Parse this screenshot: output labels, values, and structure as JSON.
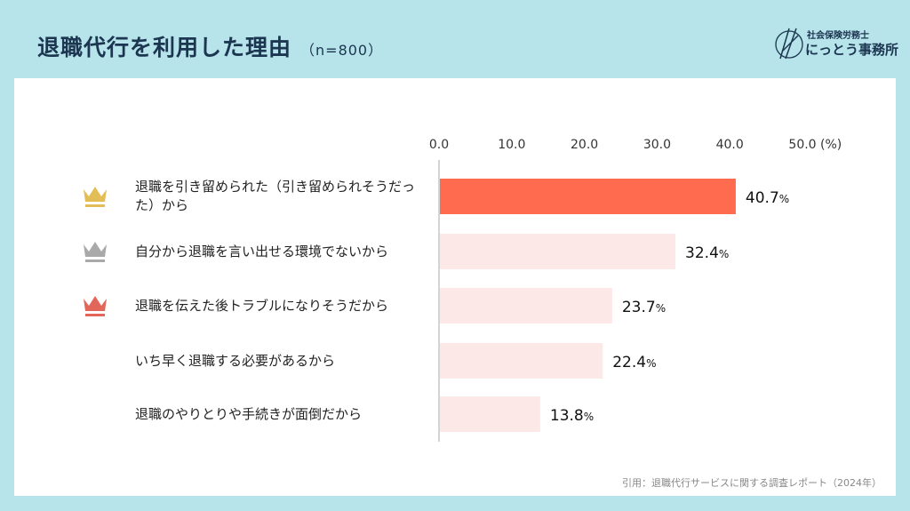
{
  "title": "退職代行を利用した理由",
  "subtitle": "（n=800）",
  "logo": {
    "line1": "社会保険労務士",
    "line2": "にっとう事務所"
  },
  "citation": "引用：退職代行サービスに関する調査レポート（2024年）",
  "colors": {
    "background": "#b6e4ea",
    "top_bar": "#ff6b4f",
    "other_bars": "#fde8e8",
    "gold": "#e3bd55",
    "silver": "#a9a9a9",
    "bronze": "#e2665a"
  },
  "chart_data": {
    "type": "bar",
    "orientation": "horizontal",
    "categories": [
      "退職を引き留められた（引き留められそうだった）から",
      "自分から退職を言い出せる環境でないから",
      "退職を伝えた後トラブルになりそうだから",
      "いち早く退職する必要があるから",
      "退職のやりとりや手続きが面倒だから"
    ],
    "values": [
      40.7,
      32.4,
      23.7,
      22.4,
      13.8
    ],
    "value_labels": [
      "40.7",
      "32.4",
      "23.7",
      "22.4",
      "13.8"
    ],
    "unit": "%",
    "xlim": [
      0,
      50
    ],
    "ticks": [
      "0.0",
      "10.0",
      "20.0",
      "30.0",
      "40.0",
      "50.0"
    ],
    "axis_unit": "(%)",
    "rank_icons": [
      "gold-crown",
      "silver-crown",
      "bronze-crown"
    ],
    "grid": false
  }
}
